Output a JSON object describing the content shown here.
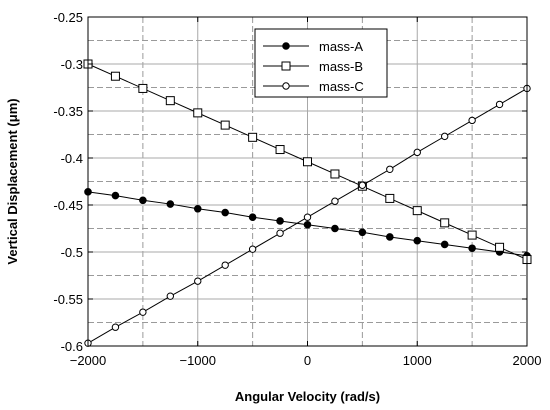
{
  "chart_data": {
    "type": "line",
    "title": "",
    "xlabel": "Angular Velocity (rad/s)",
    "ylabel": "Vertical Displacement (μm)",
    "xlim": [
      -2000,
      2000
    ],
    "ylim": [
      -0.6,
      -0.25
    ],
    "x_ticks": [
      -2000,
      -1000,
      0,
      1000,
      2000
    ],
    "x_tick_labels": [
      "−2000",
      "−1000",
      "0",
      "1000",
      "2000"
    ],
    "y_ticks": [
      -0.6,
      -0.55,
      -0.5,
      -0.45,
      -0.4,
      -0.35,
      -0.3,
      -0.25
    ],
    "y_tick_labels": [
      "-0.6",
      "-0.55",
      "-0.5",
      "-0.45",
      "-0.4",
      "-0.35",
      "-0.3",
      "-0.25"
    ],
    "grid": true,
    "legend_position": "top-center",
    "x": [
      -2000,
      -1750,
      -1500,
      -1250,
      -1000,
      -750,
      -500,
      -250,
      0,
      250,
      500,
      750,
      1000,
      1250,
      1500,
      1750,
      2000
    ],
    "series": [
      {
        "name": "mass-A",
        "marker": "filled-circle",
        "values": [
          -0.436,
          -0.44,
          -0.445,
          -0.449,
          -0.454,
          -0.458,
          -0.463,
          -0.467,
          -0.471,
          -0.475,
          -0.479,
          -0.484,
          -0.488,
          -0.492,
          -0.496,
          -0.5,
          -0.504
        ]
      },
      {
        "name": "mass-B",
        "marker": "open-square",
        "values": [
          -0.3,
          -0.313,
          -0.326,
          -0.339,
          -0.352,
          -0.365,
          -0.378,
          -0.391,
          -0.404,
          -0.417,
          -0.43,
          -0.443,
          -0.456,
          -0.469,
          -0.482,
          -0.495,
          -0.508
        ]
      },
      {
        "name": "mass-C",
        "marker": "open-circle",
        "values": [
          -0.597,
          -0.58,
          -0.564,
          -0.547,
          -0.531,
          -0.514,
          -0.497,
          -0.48,
          -0.463,
          -0.446,
          -0.429,
          -0.412,
          -0.394,
          -0.377,
          -0.36,
          -0.343,
          -0.326
        ]
      }
    ]
  }
}
